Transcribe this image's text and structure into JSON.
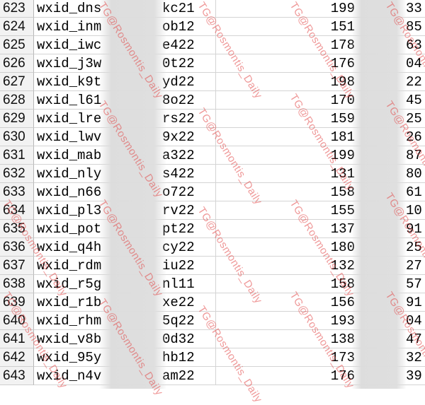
{
  "rows": [
    {
      "num": "623",
      "user": "wxid_dns",
      "suffix": "kc21",
      "value": "199",
      "tail": "33"
    },
    {
      "num": "624",
      "user": "wxid_inm",
      "suffix": "ob12",
      "value": "151",
      "tail": "85"
    },
    {
      "num": "625",
      "user": "wxid_iwc",
      "suffix": "e422",
      "value": "178",
      "tail": "63"
    },
    {
      "num": "626",
      "user": "wxid_j3w",
      "suffix": "0t22",
      "value": "176",
      "tail": "04"
    },
    {
      "num": "627",
      "user": "wxid_k9t",
      "suffix": "yd22",
      "value": "198",
      "tail": "22"
    },
    {
      "num": "628",
      "user": "wxid_l61",
      "suffix": "8o22",
      "value": "170",
      "tail": "45"
    },
    {
      "num": "629",
      "user": "wxid_lre",
      "suffix": "rs22",
      "value": "159",
      "tail": "25"
    },
    {
      "num": "630",
      "user": "wxid_lwv",
      "suffix": "9x22",
      "value": "181",
      "tail": "26"
    },
    {
      "num": "631",
      "user": "wxid_mab",
      "suffix": "a322",
      "value": "199",
      "tail": "87"
    },
    {
      "num": "632",
      "user": "wxid_nly",
      "suffix": "s422",
      "value": "131",
      "tail": "80"
    },
    {
      "num": "633",
      "user": "wxid_n66",
      "suffix": "o722",
      "value": "158",
      "tail": "61"
    },
    {
      "num": "634",
      "user": "wxid_pl3",
      "suffix": "rv22",
      "value": "155",
      "tail": "10"
    },
    {
      "num": "635",
      "user": "wxid_pot",
      "suffix": "pt22",
      "value": "137",
      "tail": "91"
    },
    {
      "num": "636",
      "user": "wxid_q4h",
      "suffix": "cy22",
      "value": "180",
      "tail": "25"
    },
    {
      "num": "637",
      "user": "wxid_rdm",
      "suffix": "iu22",
      "value": "132",
      "tail": "27"
    },
    {
      "num": "638",
      "user": "wxid_r5g",
      "suffix": "nl11",
      "value": "158",
      "tail": "57"
    },
    {
      "num": "639",
      "user": "wxid_r1b",
      "suffix": "xe22",
      "value": "156",
      "tail": "91"
    },
    {
      "num": "640",
      "user": "wxid_rhm",
      "suffix": "5q22",
      "value": "193",
      "tail": "04"
    },
    {
      "num": "641",
      "user": "wxid_v8b",
      "suffix": "0d32",
      "value": "138",
      "tail": "47"
    },
    {
      "num": "642",
      "user": "wxid_95y",
      "suffix": "hb12",
      "value": "173",
      "tail": "32"
    },
    {
      "num": "643",
      "user": "wxid_n4v",
      "suffix": "am22",
      "value": "176",
      "tail": "39"
    }
  ],
  "watermark": "TG@Rosmontis_Daily"
}
